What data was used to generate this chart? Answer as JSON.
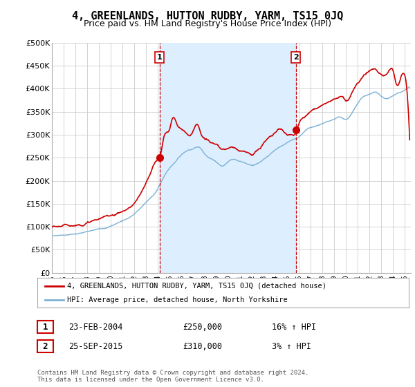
{
  "title": "4, GREENLANDS, HUTTON RUDBY, YARM, TS15 0JQ",
  "subtitle": "Price paid vs. HM Land Registry's House Price Index (HPI)",
  "ylabel_ticks": [
    "£0",
    "£50K",
    "£100K",
    "£150K",
    "£200K",
    "£250K",
    "£300K",
    "£350K",
    "£400K",
    "£450K",
    "£500K"
  ],
  "ylim": [
    0,
    500000
  ],
  "xlim_start": 1995.0,
  "xlim_end": 2025.5,
  "sale1_x": 2004.14,
  "sale1_y": 250000,
  "sale1_label": "1",
  "sale2_x": 2015.73,
  "sale2_y": 310000,
  "sale2_label": "2",
  "vline1_x": 2004.14,
  "vline2_x": 2015.73,
  "red_line_color": "#cc0000",
  "blue_line_color": "#7ab0d4",
  "shade_color": "#ddeeff",
  "vline_color": "#cc0000",
  "grid_color": "#cccccc",
  "bg_color": "#ffffff",
  "legend_line1": "4, GREENLANDS, HUTTON RUDBY, YARM, TS15 0JQ (detached house)",
  "legend_line2": "HPI: Average price, detached house, North Yorkshire",
  "table_row1_num": "1",
  "table_row1_date": "23-FEB-2004",
  "table_row1_price": "£250,000",
  "table_row1_hpi": "16% ↑ HPI",
  "table_row2_num": "2",
  "table_row2_date": "25-SEP-2015",
  "table_row2_price": "£310,000",
  "table_row2_hpi": "3% ↑ HPI",
  "footnote": "Contains HM Land Registry data © Crown copyright and database right 2024.\nThis data is licensed under the Open Government Licence v3.0.",
  "title_fontsize": 11,
  "subtitle_fontsize": 9,
  "hpi_anchors_x": [
    1995,
    1996,
    1997,
    1998,
    1999,
    2000,
    2001,
    2002,
    2003,
    2004,
    2004.5,
    2005,
    2005.5,
    2006,
    2006.5,
    2007,
    2007.5,
    2008,
    2008.5,
    2009,
    2009.5,
    2010,
    2010.5,
    2011,
    2011.5,
    2012,
    2012.5,
    2013,
    2013.5,
    2014,
    2014.5,
    2015,
    2015.5,
    2016,
    2016.5,
    2017,
    2017.5,
    2018,
    2018.5,
    2019,
    2019.5,
    2020,
    2020.5,
    2021,
    2021.5,
    2022,
    2022.5,
    2023,
    2023.5,
    2024,
    2024.5,
    2025
  ],
  "hpi_anchors_y": [
    80000,
    83000,
    86000,
    90000,
    95000,
    103000,
    115000,
    130000,
    155000,
    185000,
    210000,
    230000,
    245000,
    260000,
    270000,
    275000,
    278000,
    265000,
    255000,
    248000,
    240000,
    250000,
    255000,
    252000,
    248000,
    245000,
    248000,
    255000,
    265000,
    275000,
    283000,
    290000,
    298000,
    305000,
    318000,
    325000,
    330000,
    335000,
    340000,
    345000,
    350000,
    345000,
    360000,
    380000,
    395000,
    400000,
    405000,
    395000,
    390000,
    395000,
    400000,
    405000
  ],
  "red_anchors_x": [
    1995,
    1996,
    1997,
    1997.5,
    1998,
    1999,
    2000,
    2001,
    2002,
    2003,
    2003.5,
    2004,
    2004.14,
    2004.5,
    2005,
    2005.3,
    2005.6,
    2006,
    2006.3,
    2006.7,
    2007,
    2007.3,
    2007.7,
    2008,
    2008.3,
    2008.7,
    2009,
    2009.3,
    2009.7,
    2010,
    2010.3,
    2010.7,
    2011,
    2011.3,
    2011.7,
    2012,
    2012.3,
    2012.7,
    2013,
    2013.3,
    2013.7,
    2014,
    2014.3,
    2014.7,
    2015,
    2015.3,
    2015.73,
    2016,
    2016.3,
    2016.7,
    2017,
    2017.3,
    2017.7,
    2018,
    2018.3,
    2018.7,
    2019,
    2019.3,
    2019.7,
    2020,
    2020.5,
    2021,
    2021.5,
    2022,
    2022.5,
    2023,
    2023.5,
    2024,
    2024.3,
    2024.6,
    2025
  ],
  "red_anchors_y": [
    100000,
    102000,
    105000,
    108000,
    113000,
    120000,
    128000,
    138000,
    155000,
    195000,
    225000,
    248000,
    250000,
    295000,
    315000,
    340000,
    325000,
    315000,
    310000,
    305000,
    315000,
    330000,
    305000,
    295000,
    290000,
    285000,
    280000,
    270000,
    268000,
    270000,
    272000,
    270000,
    268000,
    268000,
    265000,
    262000,
    268000,
    275000,
    285000,
    295000,
    300000,
    308000,
    315000,
    310000,
    305000,
    308000,
    310000,
    330000,
    340000,
    350000,
    360000,
    365000,
    370000,
    378000,
    382000,
    388000,
    392000,
    395000,
    398000,
    390000,
    410000,
    430000,
    445000,
    455000,
    460000,
    450000,
    455000,
    460000,
    430000,
    440000,
    450000
  ]
}
